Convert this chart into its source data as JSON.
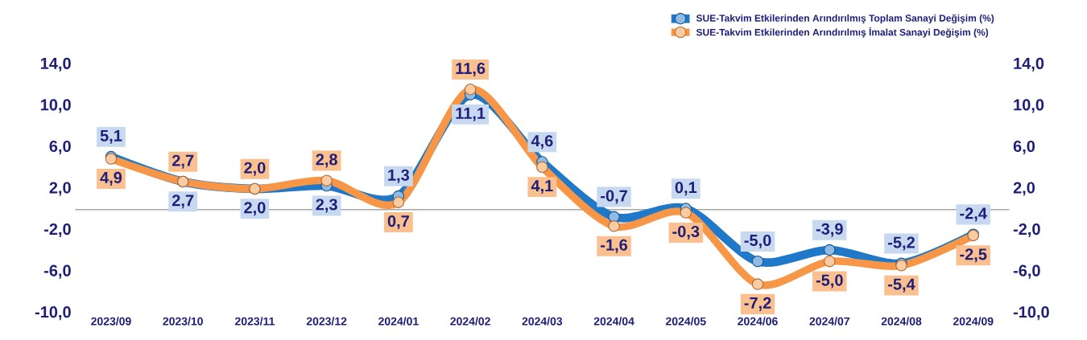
{
  "chart_data": {
    "type": "line",
    "categories": [
      "2023/09",
      "2023/10",
      "2023/11",
      "2023/12",
      "2024/01",
      "2024/02",
      "2024/03",
      "2024/04",
      "2024/05",
      "2024/06",
      "2024/07",
      "2024/08",
      "2024/09"
    ],
    "series": [
      {
        "name": "SUE-Takvim Etkilerinden Arındırılmış Toplam Sanayi Değişim (%)",
        "color": "#1f78c8",
        "values": [
          5.1,
          2.7,
          2.0,
          2.3,
          1.3,
          11.1,
          4.6,
          -0.7,
          0.1,
          -5.0,
          -3.9,
          -5.2,
          -2.4
        ],
        "value_labels": [
          "5,1",
          "2,7",
          "2,0",
          "2,3",
          "1,3",
          "11,1",
          "4,6",
          "-0,7",
          "0,1",
          "-5,0",
          "-3,9",
          "-5,2",
          "-2,4"
        ]
      },
      {
        "name": "SUE-Takvim Etkilerinden Arındırılmış İmalat Sanayi Değişim (%)",
        "color": "#f79646",
        "values": [
          4.9,
          2.7,
          2.0,
          2.8,
          0.7,
          11.6,
          4.1,
          -1.6,
          -0.3,
          -7.2,
          -5.0,
          -5.4,
          -2.5
        ],
        "value_labels": [
          "4,9",
          "2,7",
          "2,0",
          "2,8",
          "0,7",
          "11,6",
          "4,1",
          "-1,6",
          "-0,3",
          "-7,2",
          "-5,0",
          "-5,4",
          "-2,5"
        ]
      }
    ],
    "ylim": [
      -10,
      14
    ],
    "yticks": [
      {
        "value": -10,
        "label": "-10,0"
      },
      {
        "value": -6,
        "label": "-6,0"
      },
      {
        "value": -2,
        "label": "-2,0"
      },
      {
        "value": 2,
        "label": "2,0"
      },
      {
        "value": 6,
        "label": "6,0"
      },
      {
        "value": 10,
        "label": "10,0"
      },
      {
        "value": 14,
        "label": "14,0"
      }
    ],
    "y2lim": [
      -10,
      14
    ],
    "y2ticks": [
      {
        "value": -10,
        "label": "-10,0"
      },
      {
        "value": -6,
        "label": "-6,0"
      },
      {
        "value": -2,
        "label": "-2,0"
      },
      {
        "value": 2,
        "label": "2,0"
      },
      {
        "value": 6,
        "label": "6,0"
      },
      {
        "value": 10,
        "label": "10,0"
      },
      {
        "value": 14,
        "label": "14,0"
      }
    ],
    "legend": "top right",
    "marker": "circle",
    "line_style": "solid",
    "grid": false
  }
}
